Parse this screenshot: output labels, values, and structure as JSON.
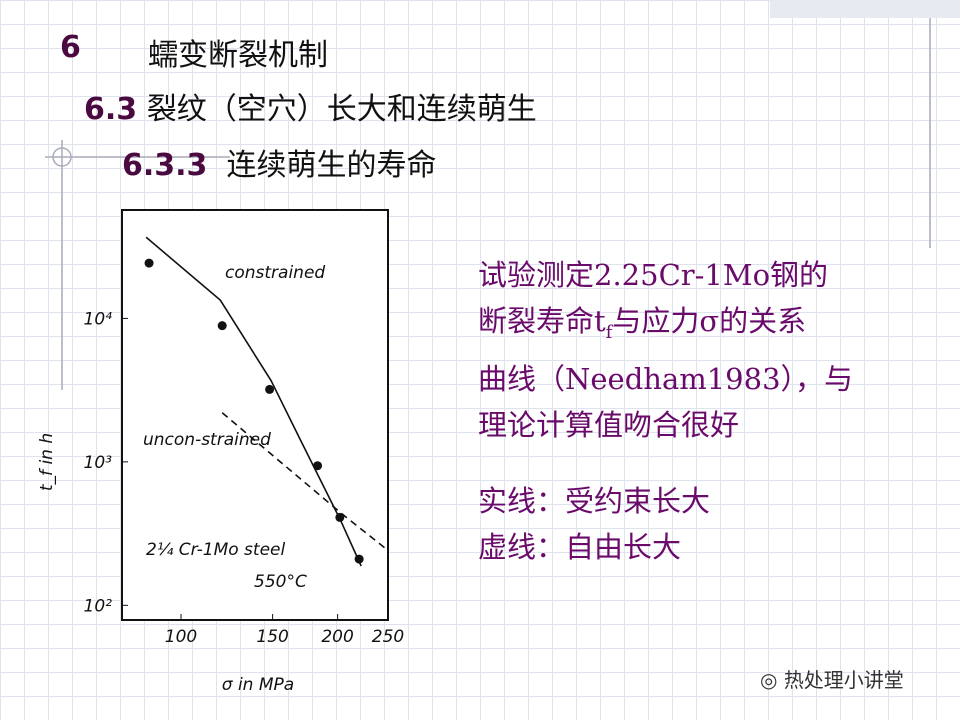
{
  "slide": {
    "chapter_number": "6",
    "chapter_title": "蠕变断裂机制",
    "section_number": "6.3",
    "section_title": "裂纹（空穴）长大和连续萌生",
    "subsection_number": "6.3.3",
    "subsection_title": "连续萌生的寿命",
    "description": {
      "line1": "试验测定2.25Cr-1Mo钢的",
      "line2_a": "断裂寿命t",
      "line2_sub": "f",
      "line2_b": "与应力σ的关系",
      "line3": "曲线（Needham1983），与",
      "line4": "理论计算值吻合很好"
    },
    "legend_solid": "实线：受约束长大",
    "legend_dashed": "虚线：自由长大",
    "watermark": "热处理小讲堂"
  },
  "chart_data": {
    "type": "scatter",
    "xlabel": "σ in MPa",
    "ylabel": "t_f in h",
    "log_x": true,
    "log_y": true,
    "xlim": [
      77,
      250
    ],
    "xticks": [
      100,
      150,
      200,
      250
    ],
    "ylim": [
      79,
      57000
    ],
    "yticks": [
      {
        "value": 100,
        "label": "10²"
      },
      {
        "value": 1000,
        "label": "10³"
      },
      {
        "value": 10000,
        "label": "10⁴"
      }
    ],
    "series": [
      {
        "style": "markers",
        "color": "#111111",
        "x": [
          86.8,
          120,
          148,
          183,
          202,
          220
        ],
        "values": [
          24300,
          8900,
          3200,
          940,
          410,
          210
        ]
      },
      {
        "name": "constrained",
        "style": "solid",
        "color": "#111111",
        "x": [
          85.7,
          119,
          149,
          170,
          203,
          222
        ],
        "values": [
          36800,
          13400,
          3680,
          1400,
          386,
          188
        ]
      },
      {
        "name": "uncon-strained",
        "style": "dashed",
        "color": "#111111",
        "x": [
          120,
          203,
          248
        ],
        "values": [
          2200,
          440,
          247
        ]
      }
    ],
    "annotations": [
      "2¼ Cr-1Mo steel",
      "550°C"
    ]
  }
}
